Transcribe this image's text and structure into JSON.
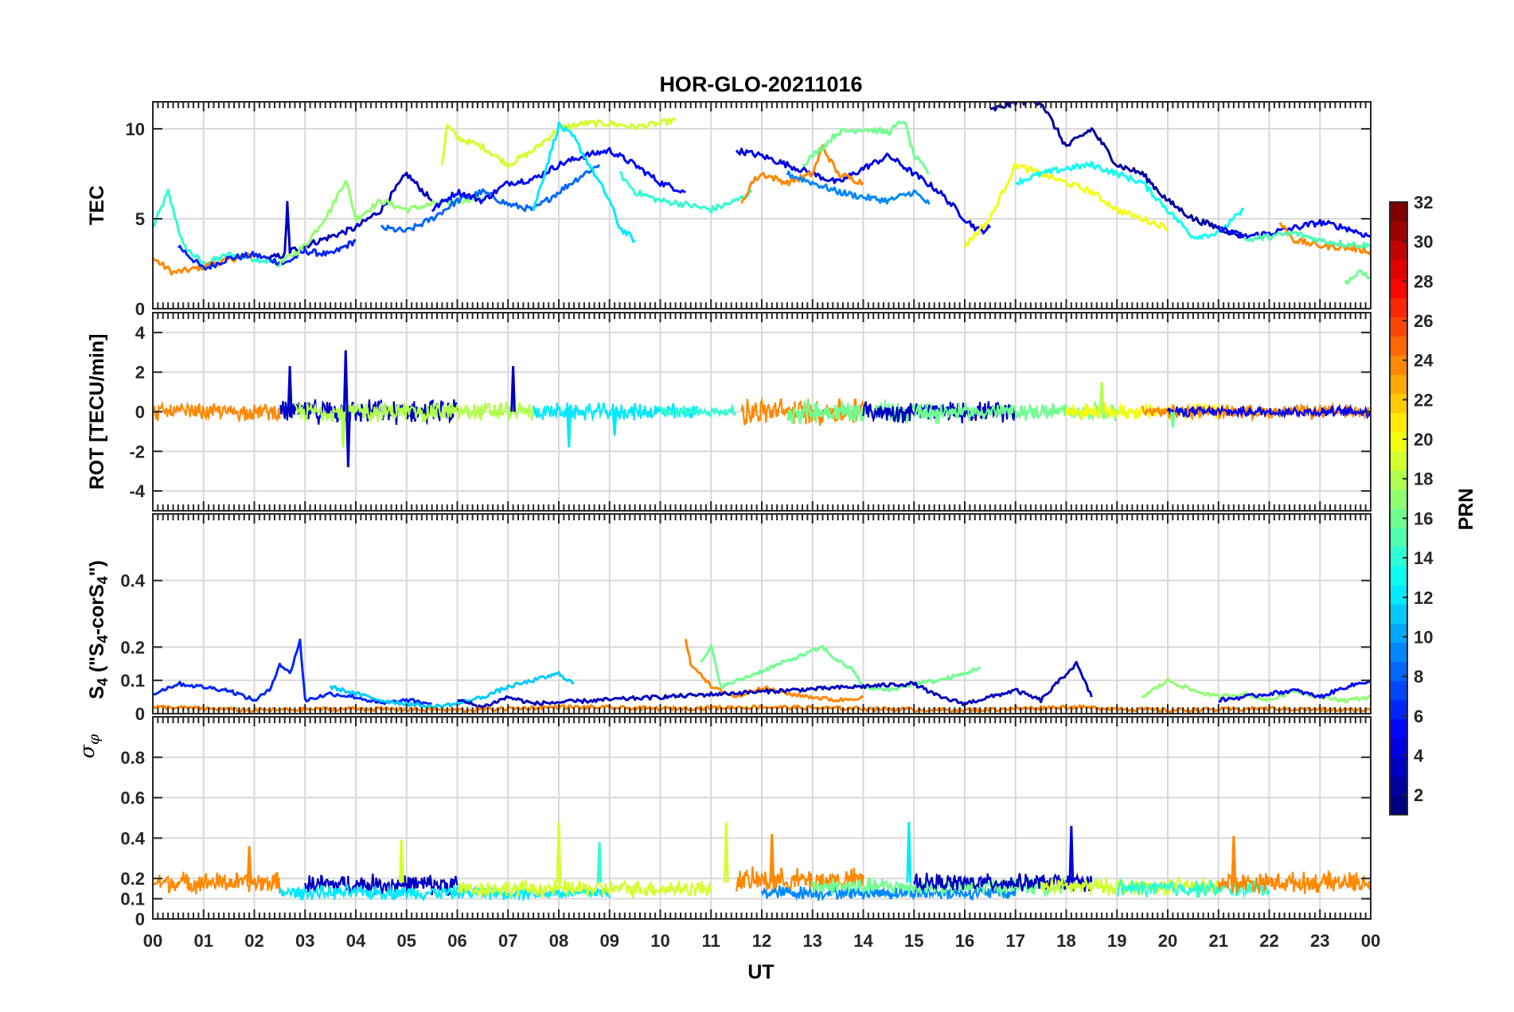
{
  "chart_data": [
    {
      "id": "tec",
      "type": "line",
      "title": "HOR-GLO-20211016",
      "ylabel": "TEC",
      "ylim": [
        0,
        11.5
      ],
      "yticks": [
        0,
        5,
        10
      ],
      "series": [
        {
          "color_index": 14,
          "x": [
            0.0,
            0.3,
            0.6,
            1.0,
            1.5,
            2.0,
            2.5
          ],
          "y": [
            4.5,
            6.5,
            3.5,
            2.5,
            3.0,
            2.8,
            2.5
          ]
        },
        {
          "color_index": 24,
          "x": [
            0.0,
            0.4,
            0.8,
            1.2,
            1.6,
            2.0
          ],
          "y": [
            2.8,
            2.0,
            2.2,
            2.5,
            2.8,
            3.0
          ]
        },
        {
          "color_index": 6,
          "x": [
            0.5,
            1.0,
            1.5,
            2.0,
            2.6,
            3.0,
            3.5,
            4.0
          ],
          "y": [
            3.5,
            2.2,
            2.8,
            3.0,
            2.5,
            3.2,
            3.0,
            3.8
          ]
        },
        {
          "color_index": 3,
          "x": [
            2.3,
            2.6,
            2.65,
            2.7,
            3.0,
            3.5,
            4.0,
            4.5,
            5.0,
            5.5
          ],
          "y": [
            2.8,
            3.0,
            5.8,
            3.2,
            3.5,
            4.0,
            4.5,
            5.5,
            7.5,
            6.0
          ]
        },
        {
          "color_index": 17,
          "x": [
            2.5,
            3.0,
            3.5,
            3.8,
            4.0,
            4.5,
            5.0,
            5.5,
            6.0,
            6.5
          ],
          "y": [
            2.5,
            3.5,
            5.5,
            7.2,
            5.0,
            6.0,
            5.5,
            5.8,
            6.0,
            6.2
          ]
        },
        {
          "color_index": 19,
          "x": [
            5.7,
            5.8,
            6.0,
            6.5,
            7.0,
            7.5,
            8.0,
            8.5,
            9.0,
            9.5,
            10.0,
            10.3
          ],
          "y": [
            8.0,
            10.2,
            9.5,
            9.0,
            8.0,
            8.8,
            10.0,
            10.3,
            10.3,
            10.1,
            10.3,
            10.5
          ]
        },
        {
          "color_index": 8,
          "x": [
            4.5,
            5.0,
            5.5,
            6.0,
            6.5,
            7.0,
            7.5,
            8.0,
            8.5,
            8.8
          ],
          "y": [
            4.5,
            4.3,
            5.0,
            6.0,
            6.5,
            5.8,
            5.5,
            6.5,
            7.5,
            8.0
          ]
        },
        {
          "color_index": 5,
          "x": [
            5.5,
            6.0,
            6.5,
            7.0,
            7.5,
            8.0,
            8.5,
            9.0,
            9.5,
            10.0,
            10.5
          ],
          "y": [
            5.5,
            6.5,
            6.0,
            7.0,
            7.2,
            8.0,
            8.5,
            8.8,
            8.0,
            7.0,
            6.5
          ]
        },
        {
          "color_index": 12,
          "x": [
            7.5,
            8.0,
            8.3,
            8.6,
            9.0,
            9.2,
            9.5
          ],
          "y": [
            5.5,
            10.2,
            9.5,
            8.0,
            6.0,
            4.5,
            3.8
          ]
        },
        {
          "color_index": 14,
          "x": [
            9.2,
            9.5,
            10.0,
            10.5,
            11.0,
            11.5,
            11.8
          ],
          "y": [
            7.5,
            6.5,
            6.0,
            5.8,
            5.5,
            6.0,
            6.5
          ]
        },
        {
          "color_index": 4,
          "x": [
            11.5,
            12.0,
            12.5,
            13.0,
            13.5,
            14.0,
            14.5,
            15.0,
            15.5,
            16.0,
            16.3,
            16.5
          ],
          "y": [
            8.8,
            8.5,
            8.0,
            7.5,
            7.0,
            7.8,
            8.5,
            7.5,
            6.5,
            5.0,
            4.3,
            4.5
          ]
        },
        {
          "color_index": 24,
          "x": [
            11.6,
            11.8,
            12.0,
            12.5,
            13.0,
            13.2,
            13.5,
            14.0
          ],
          "y": [
            5.8,
            7.0,
            7.5,
            7.0,
            7.5,
            9.0,
            7.5,
            7.0
          ]
        },
        {
          "color_index": 16,
          "x": [
            12.8,
            13.2,
            13.5,
            14.0,
            14.5,
            14.8,
            15.0,
            15.3
          ],
          "y": [
            8.0,
            9.0,
            9.8,
            10.0,
            9.8,
            10.5,
            8.5,
            7.5
          ]
        },
        {
          "color_index": 9,
          "x": [
            12.5,
            13.0,
            13.5,
            14.0,
            14.5,
            15.0,
            15.3
          ],
          "y": [
            7.5,
            7.0,
            6.5,
            6.2,
            6.0,
            6.5,
            5.8
          ]
        },
        {
          "color_index": 2,
          "x": [
            16.5,
            17.0,
            17.5,
            18.0,
            18.5,
            19.0,
            19.5,
            20.0,
            20.5,
            21.0,
            21.5
          ],
          "y": [
            11.0,
            11.5,
            11.5,
            9.0,
            10.0,
            8.0,
            7.5,
            6.0,
            5.0,
            4.5,
            4.0
          ]
        },
        {
          "color_index": 20,
          "x": [
            16.0,
            16.5,
            17.0,
            17.5,
            18.0,
            18.5,
            19.0,
            19.5,
            20.0
          ],
          "y": [
            3.5,
            5.0,
            8.0,
            7.5,
            7.0,
            6.5,
            5.5,
            5.0,
            4.5
          ]
        },
        {
          "color_index": 13,
          "x": [
            17.0,
            17.5,
            18.0,
            18.5,
            19.0,
            19.5,
            20.0,
            20.5,
            21.0,
            21.5
          ],
          "y": [
            7.0,
            7.5,
            7.8,
            8.0,
            7.5,
            7.0,
            5.5,
            4.0,
            4.2,
            5.5
          ]
        },
        {
          "color_index": 5,
          "x": [
            21.0,
            21.5,
            22.0,
            22.5,
            23.0,
            23.5,
            24.0
          ],
          "y": [
            4.5,
            4.0,
            4.2,
            4.5,
            4.8,
            4.5,
            4.0
          ]
        },
        {
          "color_index": 24,
          "x": [
            22.2,
            22.5,
            23.0,
            23.5,
            24.0
          ],
          "y": [
            4.8,
            3.8,
            3.5,
            3.4,
            3.2
          ]
        },
        {
          "color_index": 15,
          "x": [
            21.5,
            22.0,
            22.5,
            23.0,
            23.5,
            24.0
          ],
          "y": [
            3.8,
            4.0,
            4.2,
            3.8,
            3.6,
            3.5
          ]
        },
        {
          "color_index": 16,
          "x": [
            23.5,
            23.8,
            24.0
          ],
          "y": [
            1.5,
            2.0,
            1.8
          ]
        }
      ]
    },
    {
      "id": "rot",
      "type": "line",
      "ylabel": "ROT [TECU/min]",
      "ylim": [
        -5,
        5
      ],
      "yticks": [
        -4,
        -2,
        0,
        2,
        4
      ],
      "spikes": [
        {
          "color_index": 3,
          "x": 2.7,
          "y": 2.3
        },
        {
          "color_index": 3,
          "x": 3.8,
          "y": 3.1
        },
        {
          "color_index": 3,
          "x": 3.85,
          "y": -2.8
        },
        {
          "color_index": 3,
          "x": 7.1,
          "y": 2.3
        },
        {
          "color_index": 18,
          "x": 3.75,
          "y": -1.8
        },
        {
          "color_index": 12,
          "x": 8.2,
          "y": -1.8
        },
        {
          "color_index": 12,
          "x": 9.1,
          "y": -1.2
        },
        {
          "color_index": 18,
          "x": 18.7,
          "y": 1.5
        },
        {
          "color_index": 16,
          "x": 20.1,
          "y": -0.8
        }
      ],
      "noise_bands": [
        {
          "color_index": 24,
          "x0": 0.0,
          "x1": 2.5,
          "amp": 0.5
        },
        {
          "color_index": 3,
          "x0": 2.5,
          "x1": 6.0,
          "amp": 0.7
        },
        {
          "color_index": 18,
          "x0": 2.8,
          "x1": 7.5,
          "amp": 0.6
        },
        {
          "color_index": 12,
          "x0": 7.5,
          "x1": 10.8,
          "amp": 0.5
        },
        {
          "color_index": 14,
          "x0": 10.0,
          "x1": 11.5,
          "amp": 0.3
        },
        {
          "color_index": 24,
          "x0": 11.6,
          "x1": 14.0,
          "amp": 0.8
        },
        {
          "color_index": 16,
          "x0": 12.5,
          "x1": 15.5,
          "amp": 0.7
        },
        {
          "color_index": 3,
          "x0": 14.0,
          "x1": 17.0,
          "amp": 0.6
        },
        {
          "color_index": 16,
          "x0": 15.0,
          "x1": 19.0,
          "amp": 0.5
        },
        {
          "color_index": 20,
          "x0": 18.0,
          "x1": 21.0,
          "amp": 0.5
        },
        {
          "color_index": 24,
          "x0": 19.5,
          "x1": 24.0,
          "amp": 0.4
        },
        {
          "color_index": 5,
          "x0": 20.0,
          "x1": 24.0,
          "amp": 0.3
        }
      ]
    },
    {
      "id": "s4",
      "type": "line",
      "ylabel_main": "S",
      "ylabel_sub1": "4",
      "ylabel_mid": " (\"S",
      "ylabel_sub2": "4",
      "ylabel_end": "-corS",
      "ylabel_sub3": "4",
      "ylabel_close": "\")",
      "ylim": [
        0,
        0.6
      ],
      "yticks": [
        0,
        0.1,
        0.2,
        0.4
      ],
      "ytick_labels": [
        "0",
        "0.1",
        "0.2",
        "0.4"
      ],
      "series": [
        {
          "color_index": 6,
          "x": [
            0.0,
            0.5,
            1.0,
            1.5,
            2.0,
            2.3,
            2.5,
            2.7,
            2.9,
            3.0,
            3.5,
            4.0,
            4.5,
            5.0,
            5.5
          ],
          "y": [
            0.06,
            0.09,
            0.08,
            0.07,
            0.04,
            0.07,
            0.15,
            0.12,
            0.22,
            0.04,
            0.06,
            0.05,
            0.03,
            0.04,
            0.03
          ]
        },
        {
          "color_index": 11,
          "x": [
            3.5,
            4.0,
            4.5,
            5.0,
            5.5,
            6.0,
            6.5,
            7.0,
            7.5,
            8.0,
            8.3
          ],
          "y": [
            0.08,
            0.06,
            0.04,
            0.03,
            0.02,
            0.03,
            0.05,
            0.08,
            0.1,
            0.12,
            0.09
          ]
        },
        {
          "color_index": 24,
          "x": [
            10.5,
            10.6,
            10.8,
            11.0,
            11.5,
            12.0,
            12.5,
            13.0,
            13.5,
            14.0
          ],
          "y": [
            0.22,
            0.15,
            0.12,
            0.08,
            0.05,
            0.08,
            0.06,
            0.05,
            0.04,
            0.05
          ]
        },
        {
          "color_index": 16,
          "x": [
            10.8,
            11.0,
            11.2,
            13.2,
            13.4,
            13.8,
            14.0,
            14.5,
            15.0,
            15.5,
            16.0,
            16.3
          ],
          "y": [
            0.15,
            0.2,
            0.08,
            0.2,
            0.17,
            0.13,
            0.08,
            0.07,
            0.09,
            0.1,
            0.12,
            0.14
          ]
        },
        {
          "color_index": 3,
          "x": [
            6.0,
            6.5,
            7.0,
            7.5,
            15.0,
            15.5,
            16.0,
            17.0,
            17.5,
            18.0,
            18.2,
            18.5
          ],
          "y": [
            0.04,
            0.02,
            0.05,
            0.03,
            0.09,
            0.05,
            0.03,
            0.07,
            0.04,
            0.12,
            0.15,
            0.05
          ]
        },
        {
          "color_index": 17,
          "x": [
            19.5,
            20.0,
            20.5,
            21.0,
            21.5,
            22.0,
            22.5,
            23.0,
            23.5,
            24.0
          ],
          "y": [
            0.05,
            0.1,
            0.07,
            0.05,
            0.06,
            0.04,
            0.07,
            0.05,
            0.04,
            0.05
          ]
        },
        {
          "color_index": 5,
          "x": [
            21.0,
            21.5,
            22.0,
            22.5,
            23.0,
            23.5,
            24.0
          ],
          "y": [
            0.04,
            0.05,
            0.06,
            0.07,
            0.05,
            0.08,
            0.1
          ]
        },
        {
          "color_index": 24,
          "x": [
            0.0,
            2.0,
            4.0,
            6.0,
            8.0,
            10.0,
            12.0,
            14.0,
            16.0,
            18.0,
            20.0,
            22.0,
            24.0
          ],
          "y": [
            0.02,
            0.01,
            0.015,
            0.01,
            0.02,
            0.015,
            0.02,
            0.015,
            0.01,
            0.02,
            0.01,
            0.015,
            0.01
          ]
        }
      ]
    },
    {
      "id": "sigma",
      "type": "line",
      "ylabel": "σφ",
      "ylabel_main": "σ",
      "ylabel_sub": "φ",
      "ylim": [
        0,
        1.0
      ],
      "yticks": [
        0,
        0.1,
        0.2,
        0.4,
        0.6,
        0.8
      ],
      "ytick_labels": [
        "0",
        "0.1",
        "0.2",
        "0.4",
        "0.6",
        "0.8"
      ],
      "xlabel": "UT",
      "xlim": [
        0,
        24
      ],
      "xticks": [
        "00",
        "01",
        "02",
        "03",
        "04",
        "05",
        "06",
        "07",
        "08",
        "09",
        "10",
        "11",
        "12",
        "13",
        "14",
        "15",
        "16",
        "17",
        "18",
        "19",
        "20",
        "21",
        "22",
        "23",
        "00"
      ],
      "spikes": [
        {
          "color_index": 24,
          "x": 1.9,
          "y": 0.36
        },
        {
          "color_index": 19,
          "x": 4.9,
          "y": 0.39
        },
        {
          "color_index": 19,
          "x": 8.0,
          "y": 0.48
        },
        {
          "color_index": 14,
          "x": 8.8,
          "y": 0.38
        },
        {
          "color_index": 19,
          "x": 11.3,
          "y": 0.48
        },
        {
          "color_index": 24,
          "x": 12.2,
          "y": 0.42
        },
        {
          "color_index": 12,
          "x": 14.9,
          "y": 0.48
        },
        {
          "color_index": 4,
          "x": 18.1,
          "y": 0.46
        },
        {
          "color_index": 24,
          "x": 21.3,
          "y": 0.41
        }
      ],
      "noise_bands": [
        {
          "color_index": 24,
          "x0": 0.0,
          "x1": 2.5,
          "center": 0.18,
          "amp": 0.06
        },
        {
          "color_index": 3,
          "x0": 3.0,
          "x1": 6.0,
          "center": 0.17,
          "amp": 0.06
        },
        {
          "color_index": 12,
          "x0": 2.5,
          "x1": 9.0,
          "center": 0.13,
          "amp": 0.04
        },
        {
          "color_index": 19,
          "x0": 6.0,
          "x1": 11.0,
          "center": 0.15,
          "amp": 0.05
        },
        {
          "color_index": 24,
          "x0": 11.5,
          "x1": 14.0,
          "center": 0.19,
          "amp": 0.07
        },
        {
          "color_index": 9,
          "x0": 12.0,
          "x1": 17.0,
          "center": 0.13,
          "amp": 0.04
        },
        {
          "color_index": 16,
          "x0": 13.0,
          "x1": 18.0,
          "center": 0.16,
          "amp": 0.05
        },
        {
          "color_index": 3,
          "x0": 15.0,
          "x1": 18.5,
          "center": 0.18,
          "amp": 0.05
        },
        {
          "color_index": 19,
          "x0": 17.5,
          "x1": 21.0,
          "center": 0.16,
          "amp": 0.05
        },
        {
          "color_index": 14,
          "x0": 19.0,
          "x1": 22.0,
          "center": 0.15,
          "amp": 0.05
        },
        {
          "color_index": 24,
          "x0": 21.0,
          "x1": 24.0,
          "center": 0.18,
          "amp": 0.06
        }
      ]
    }
  ],
  "colorbar": {
    "label": "PRN",
    "range": [
      1,
      32
    ],
    "ticks": [
      "2",
      "4",
      "6",
      "8",
      "10",
      "12",
      "14",
      "16",
      "18",
      "20",
      "22",
      "24",
      "26",
      "28",
      "30",
      "32"
    ],
    "colormap": "jet"
  }
}
